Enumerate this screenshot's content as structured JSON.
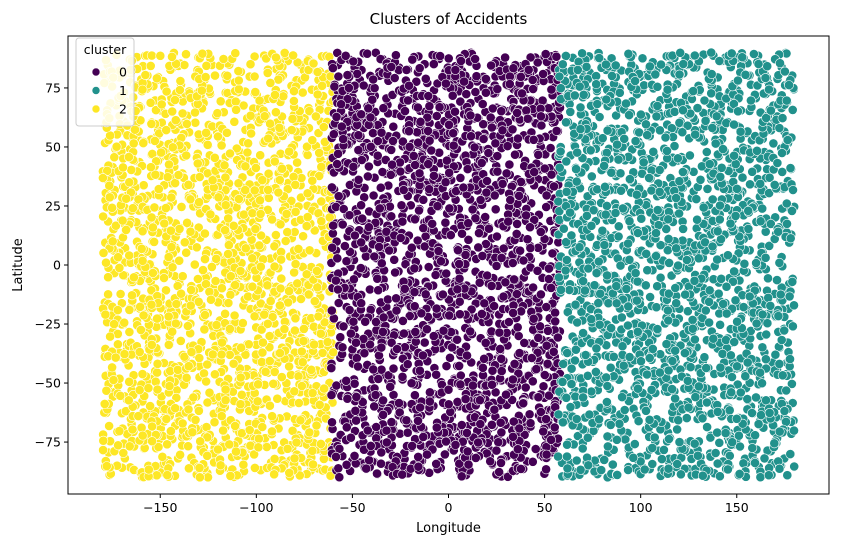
{
  "chart_data": {
    "type": "scatter",
    "title": "Clusters of Accidents",
    "xlabel": "Longitude",
    "ylabel": "Latitude",
    "xlim": [
      -198,
      198
    ],
    "ylim": [
      -97,
      97
    ],
    "xticks": [
      -150,
      -100,
      -50,
      0,
      50,
      100,
      150
    ],
    "xtick_labels": [
      "−150",
      "−100",
      "−50",
      "0",
      "50",
      "100",
      "150"
    ],
    "yticks": [
      -75,
      -50,
      -25,
      0,
      25,
      50,
      75
    ],
    "ytick_labels": [
      "−75",
      "−50",
      "−25",
      "0",
      "25",
      "50",
      "75"
    ],
    "grid": false,
    "legend": {
      "title": "cluster",
      "placement": "top-left"
    },
    "series": [
      {
        "name": "0",
        "color": "#440154",
        "x_range": [
          -61,
          58
        ],
        "y_range": [
          -90,
          90
        ]
      },
      {
        "name": "1",
        "color": "#21918c",
        "x_range": [
          57,
          180
        ],
        "y_range": [
          -90,
          90
        ]
      },
      {
        "name": "2",
        "color": "#fde725",
        "x_range": [
          -180,
          -60
        ],
        "y_range": [
          -90,
          90
        ]
      }
    ]
  }
}
